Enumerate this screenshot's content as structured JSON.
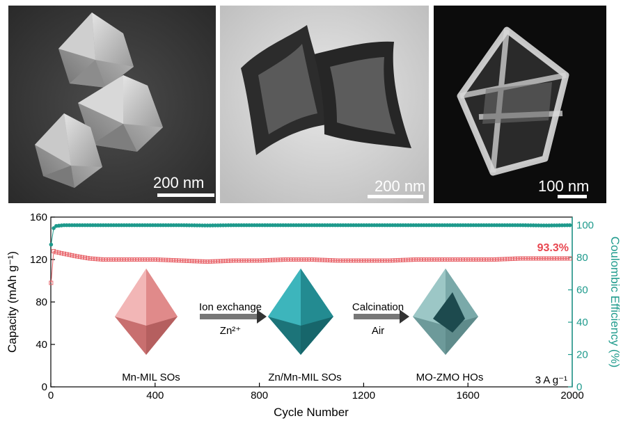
{
  "micrographs": [
    {
      "scale_label": "200 nm"
    },
    {
      "scale_label": "200 nm"
    },
    {
      "scale_label": "100 nm"
    }
  ],
  "chart_data": {
    "type": "scatter",
    "xlabel": "Cycle Number",
    "ylabel": "Capacity (mAh g⁻¹)",
    "ylabel2": "Coulombic Efficiency (%)",
    "xlim": [
      0,
      2000
    ],
    "ylim": [
      0,
      160
    ],
    "ylim2": [
      0,
      105
    ],
    "x_ticks": [
      0,
      400,
      800,
      1200,
      1600,
      2000
    ],
    "y_ticks": [
      0,
      40,
      80,
      120,
      160
    ],
    "y2_ticks": [
      0,
      20,
      40,
      60,
      80,
      100
    ],
    "series": [
      {
        "axis": "left",
        "color": "#e8646a",
        "marker": "open-square",
        "x": [
          1,
          5,
          10,
          20,
          40,
          60,
          100,
          150,
          200,
          300,
          400,
          500,
          600,
          700,
          800,
          900,
          1000,
          1100,
          1200,
          1300,
          1400,
          1500,
          1600,
          1700,
          1800,
          1900,
          2000
        ],
        "values": [
          98,
          130,
          128,
          127,
          126,
          125,
          123,
          121,
          120,
          120,
          120,
          119,
          118,
          119,
          119,
          120,
          120,
          119,
          119,
          119,
          120,
          120,
          120,
          120,
          121,
          121,
          121
        ]
      },
      {
        "axis": "right",
        "color": "#1e9a8c",
        "marker": "filled-circle",
        "x": [
          1,
          5,
          10,
          20,
          50,
          100,
          200,
          300,
          400,
          500,
          600,
          700,
          800,
          900,
          1000,
          1100,
          1200,
          1300,
          1400,
          1500,
          1600,
          1700,
          1800,
          1900,
          2000
        ],
        "values": [
          88,
          92,
          98,
          99.5,
          100,
          100,
          100,
          100,
          100,
          100,
          99.8,
          100,
          100,
          100,
          100,
          100,
          100,
          100,
          100,
          100,
          100,
          100,
          100,
          99.8,
          100
        ]
      }
    ],
    "annotations": {
      "retention": "93.3%",
      "current_density": "3 A g⁻¹"
    }
  },
  "inset": {
    "step1_top": "Ion exchange",
    "step1_bottom": "Zn²⁺",
    "step2_top": "Calcination",
    "step2_bottom": "Air",
    "labels": [
      "Mn-MIL SOs",
      "Zn/Mn-MIL SOs",
      "MO-ZMO HOs"
    ],
    "colors": {
      "pink": "#e89a9a",
      "teal": "#2fa3aa",
      "hollow": "#86b6b5"
    }
  }
}
